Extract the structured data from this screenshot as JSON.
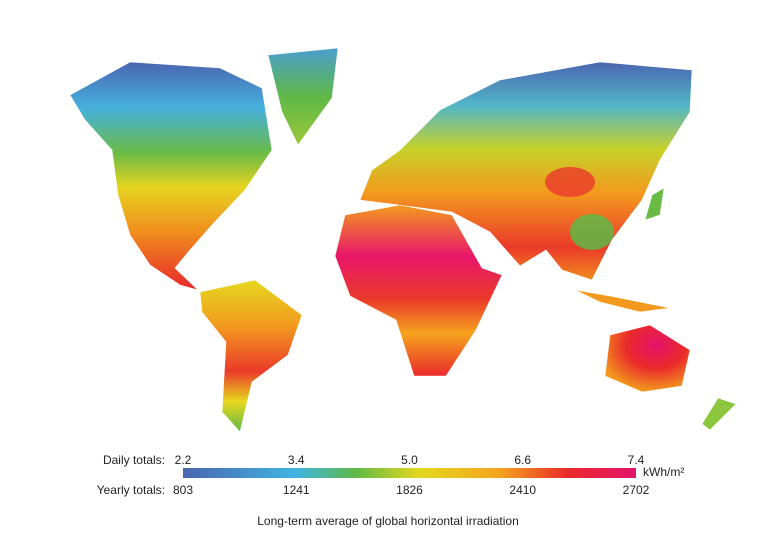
{
  "legend": {
    "daily_label": "Daily totals:",
    "daily_ticks": [
      "2.2",
      "3.4",
      "5.0",
      "6.6",
      "7.4"
    ],
    "yearly_label": "Yearly totals:",
    "yearly_ticks": [
      "803",
      "1241",
      "1826",
      "2410",
      "2702"
    ],
    "unit": "kWh/m²"
  },
  "caption": "Long-term average of global horizontal irradiation"
}
